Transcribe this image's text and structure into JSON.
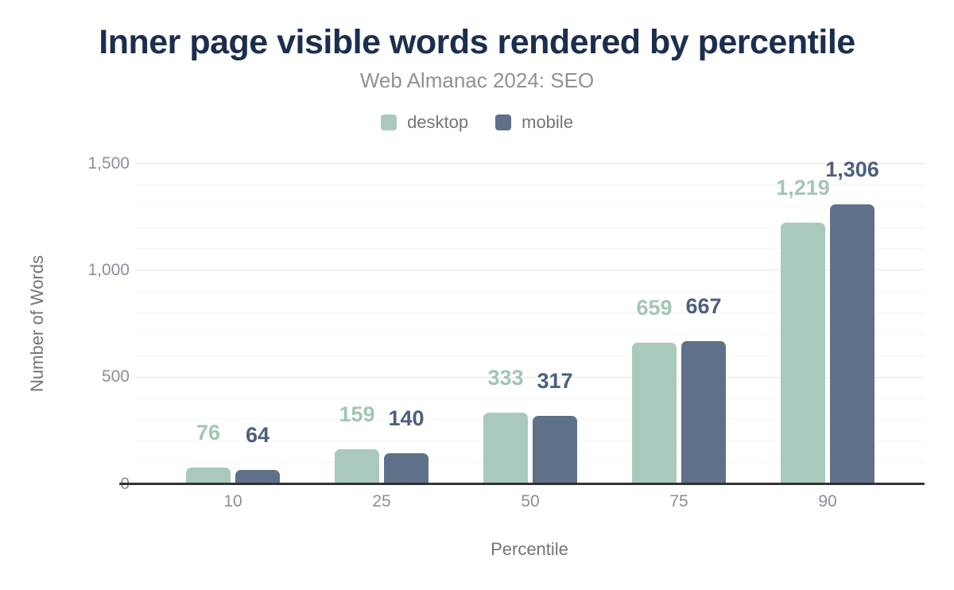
{
  "chart_data": {
    "type": "bar",
    "title": "Inner page visible words rendered by percentile",
    "subtitle": "Web Almanac 2024: SEO",
    "xlabel": "Percentile",
    "ylabel": "Number of Words",
    "categories": [
      "10",
      "25",
      "50",
      "75",
      "90"
    ],
    "series": [
      {
        "name": "desktop",
        "color": "#a9cabb",
        "label_color": "#a3c6b3",
        "values": [
          76,
          159,
          333,
          659,
          1219
        ],
        "value_labels": [
          "76",
          "159",
          "333",
          "659",
          "1,219"
        ]
      },
      {
        "name": "mobile",
        "color": "#5f7089",
        "label_color": "#4c5f7d",
        "values": [
          64,
          140,
          317,
          667,
          1306
        ],
        "value_labels": [
          "64",
          "140",
          "317",
          "667",
          "1,306"
        ]
      }
    ],
    "ylim": [
      0,
      1500
    ],
    "yticks": [
      0,
      500,
      1000,
      1500
    ],
    "ytick_labels": [
      "0",
      "500",
      "1,000",
      "1,500"
    ],
    "minor_grid_step": 100,
    "grid": true,
    "legend_position": "top"
  },
  "colors": {
    "title": "#1c2e4e",
    "subtitle_text": "#8f9194",
    "axis_text": "#757575",
    "tick_text": "#8a8f98",
    "grid_major": "#e6e6e6",
    "grid_minor": "#f5f5f5",
    "axis_line": "#333333",
    "background": "#ffffff",
    "desktop": "#a9cabb",
    "mobile": "#5f7089"
  }
}
